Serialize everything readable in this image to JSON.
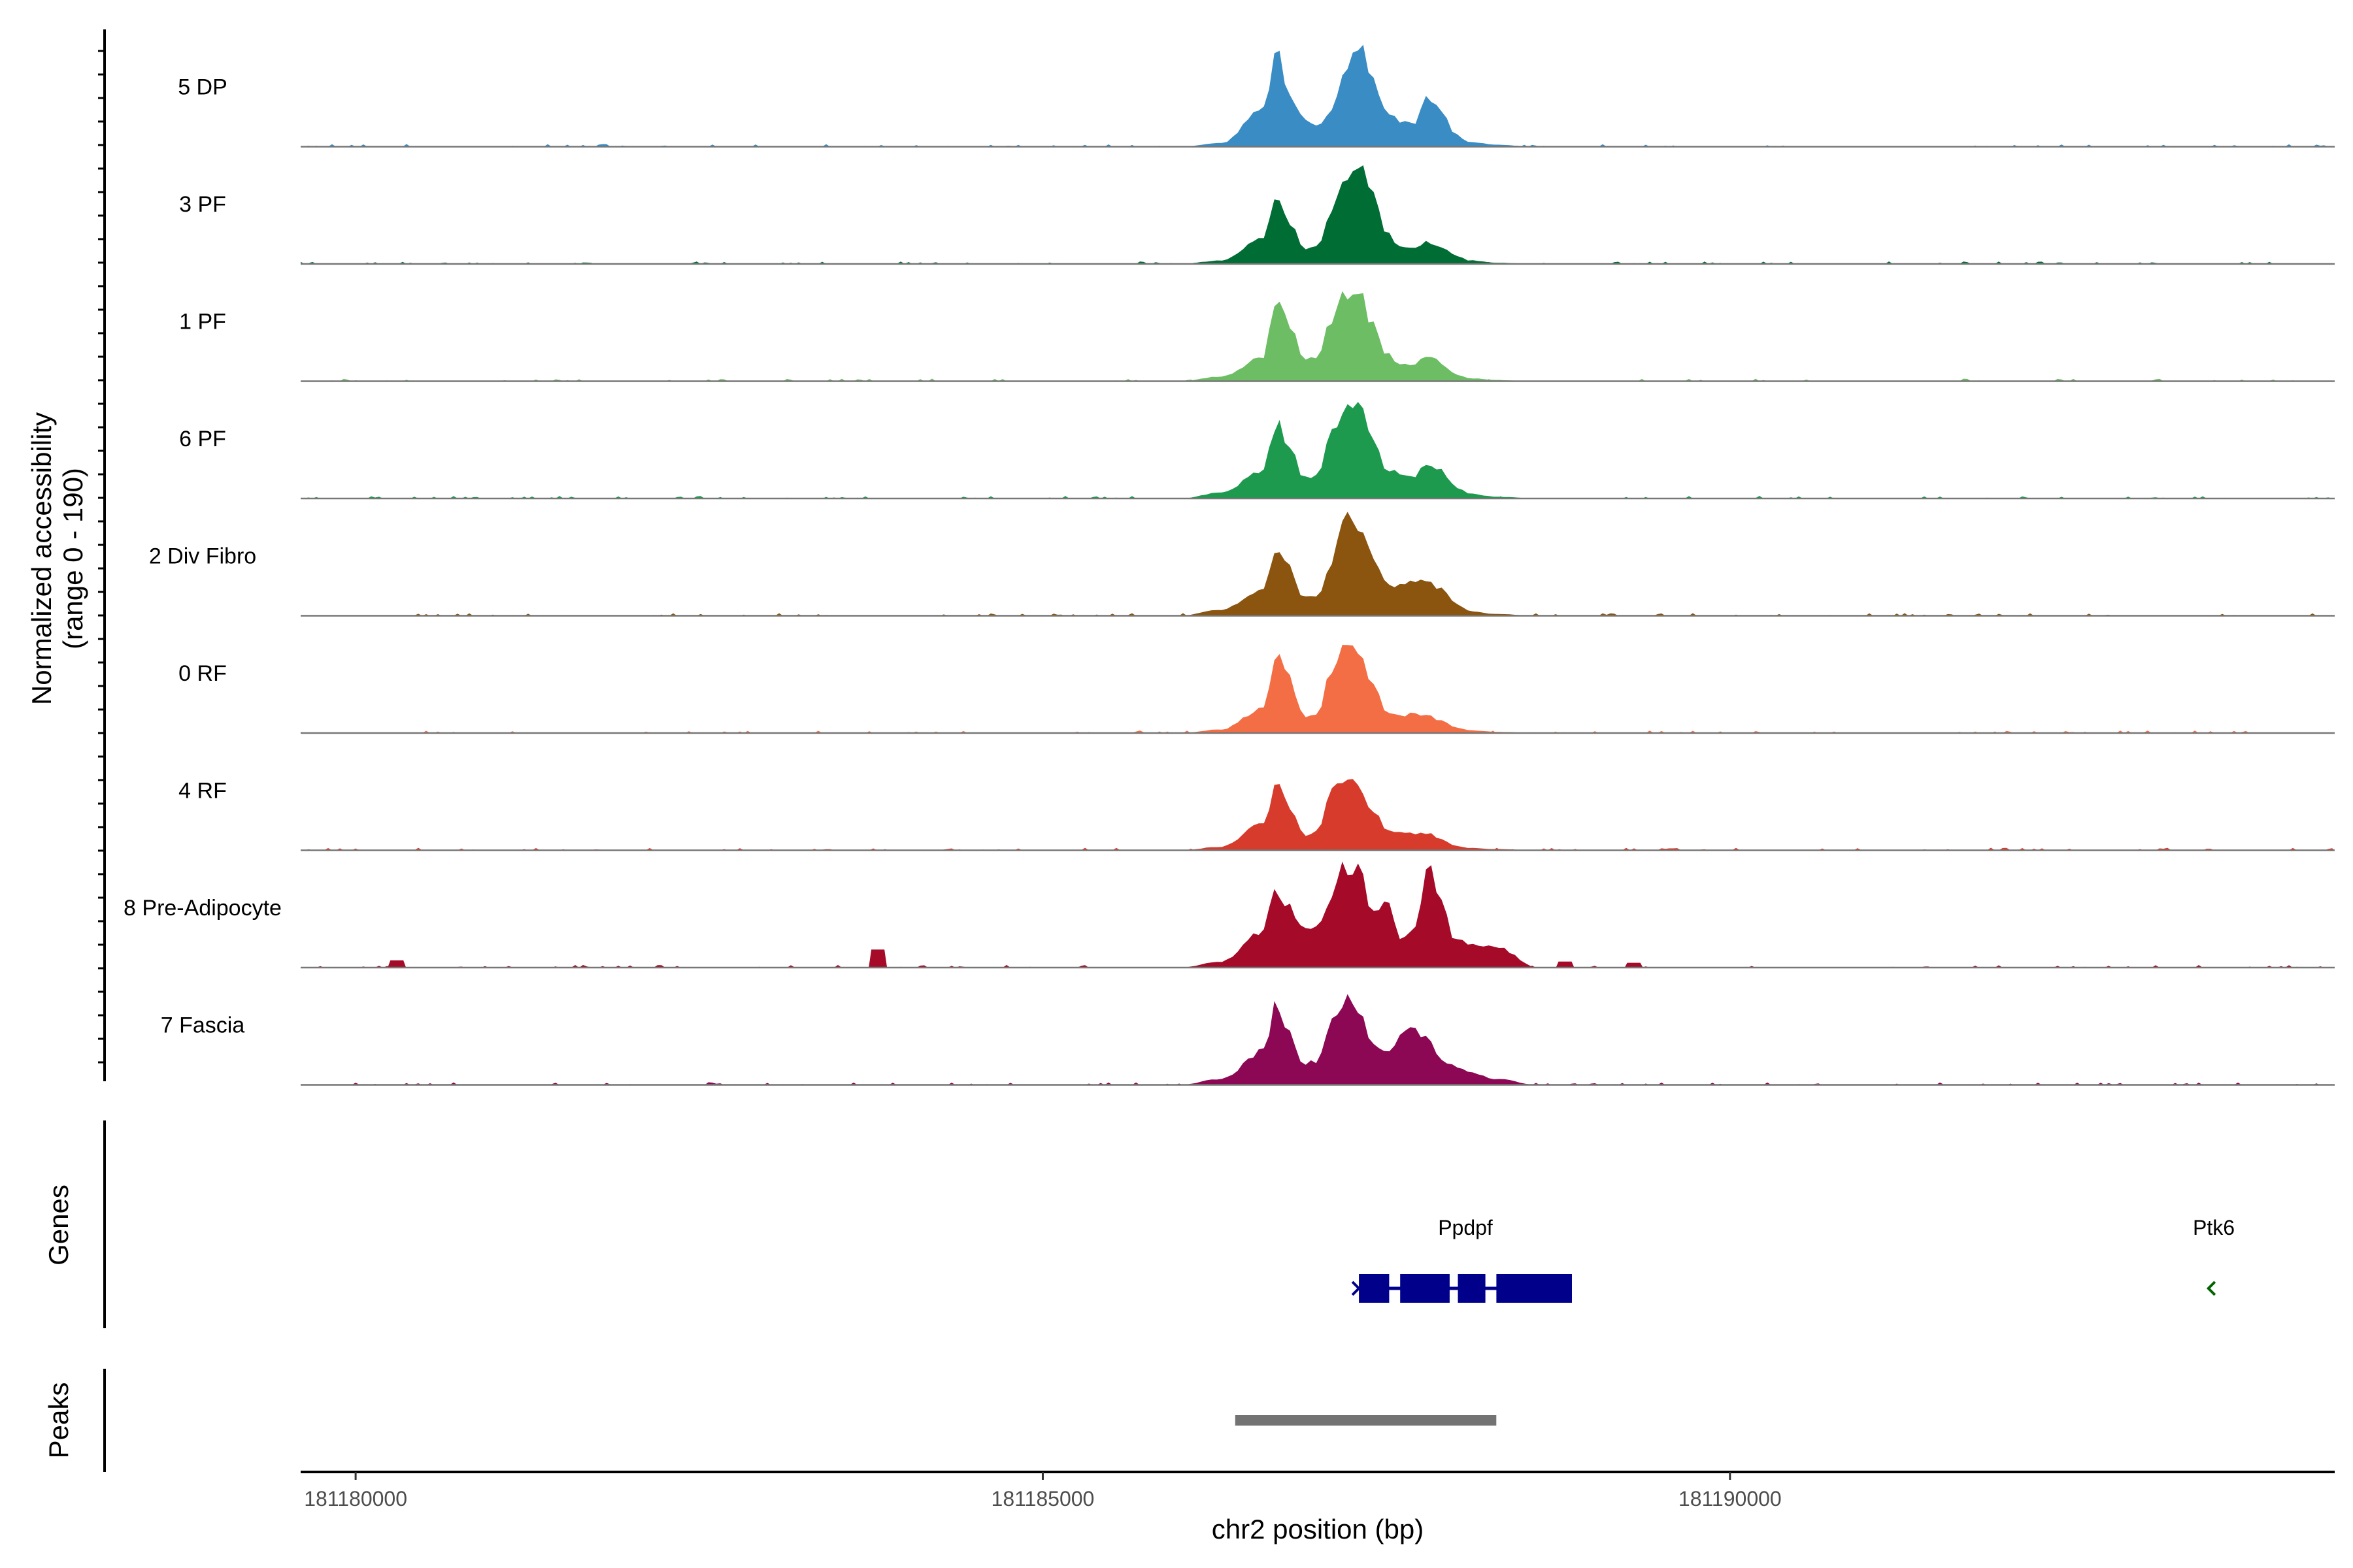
{
  "chart_data": {
    "type": "area",
    "chromosome": "chr2",
    "xlabel": "chr2 position (bp)",
    "ylabel": "Normalized accessibility",
    "ylabel_range": "(range 0 - 190)",
    "ylim": [
      0,
      190
    ],
    "xlim": [
      181179600,
      181194400
    ],
    "x_ticks": [
      {
        "value": 181180000,
        "label": "181180000"
      },
      {
        "value": 181185000,
        "label": "181185000"
      },
      {
        "value": 181190000,
        "label": "181190000"
      }
    ],
    "grid": false,
    "peak_profile": {
      "x": [
        181186000,
        181186300,
        181186600,
        181186700,
        181186800,
        181186900,
        181187000,
        181187100,
        181187200,
        181187300,
        181187400,
        181187500,
        181187600,
        181187700,
        181187800,
        181187900,
        181188000,
        181188100,
        181188300,
        181188600
      ],
      "rel": [
        0,
        0.05,
        0.3,
        0.8,
        0.5,
        0.2,
        0.15,
        0.35,
        0.8,
        0.95,
        0.6,
        0.3,
        0.22,
        0.18,
        0.25,
        0.2,
        0.12,
        0.06,
        0.02,
        0
      ]
    },
    "series": [
      {
        "name": "5 DP",
        "color": "#3a8cc4",
        "values": [
          [
            181186000,
            0
          ],
          [
            181186300,
            6
          ],
          [
            181186600,
            60
          ],
          [
            181186700,
            155
          ],
          [
            181186800,
            85
          ],
          [
            181186900,
            45
          ],
          [
            181187000,
            38
          ],
          [
            181187100,
            60
          ],
          [
            181187200,
            120
          ],
          [
            181187300,
            175
          ],
          [
            181187400,
            110
          ],
          [
            181187500,
            60
          ],
          [
            181187600,
            42
          ],
          [
            181187700,
            40
          ],
          [
            181187800,
            80
          ],
          [
            181187900,
            60
          ],
          [
            181188000,
            22
          ],
          [
            181188100,
            8
          ],
          [
            181188300,
            3
          ],
          [
            181188600,
            0
          ]
        ]
      },
      {
        "name": "3 PF",
        "color": "#006d35",
        "values": [
          [
            181186000,
            0
          ],
          [
            181186300,
            6
          ],
          [
            181186600,
            40
          ],
          [
            181186700,
            120
          ],
          [
            181186800,
            65
          ],
          [
            181186900,
            25
          ],
          [
            181187000,
            30
          ],
          [
            181187100,
            95
          ],
          [
            181187200,
            150
          ],
          [
            181187300,
            165
          ],
          [
            181187400,
            115
          ],
          [
            181187500,
            50
          ],
          [
            181187600,
            30
          ],
          [
            181187700,
            25
          ],
          [
            181187800,
            38
          ],
          [
            181187900,
            28
          ],
          [
            181188000,
            14
          ],
          [
            181188100,
            6
          ],
          [
            181188300,
            2
          ],
          [
            181188600,
            0
          ]
        ]
      },
      {
        "name": "1 PF",
        "color": "#6cbd63",
        "values": [
          [
            181186000,
            0
          ],
          [
            181186300,
            8
          ],
          [
            181186600,
            40
          ],
          [
            181186700,
            130
          ],
          [
            181186800,
            90
          ],
          [
            181186900,
            35
          ],
          [
            181187000,
            40
          ],
          [
            181187100,
            100
          ],
          [
            181187200,
            150
          ],
          [
            181187300,
            145
          ],
          [
            181187400,
            95
          ],
          [
            181187500,
            45
          ],
          [
            181187600,
            30
          ],
          [
            181187700,
            28
          ],
          [
            181187800,
            45
          ],
          [
            181187900,
            30
          ],
          [
            181188000,
            12
          ],
          [
            181188100,
            5
          ],
          [
            181188300,
            2
          ],
          [
            181188600,
            0
          ]
        ]
      },
      {
        "name": "6 PF",
        "color": "#1d9a4e",
        "values": [
          [
            181186000,
            0
          ],
          [
            181186300,
            10
          ],
          [
            181186600,
            45
          ],
          [
            181186700,
            125
          ],
          [
            181186800,
            80
          ],
          [
            181186900,
            35
          ],
          [
            181187000,
            40
          ],
          [
            181187100,
            110
          ],
          [
            181187200,
            160
          ],
          [
            181187300,
            150
          ],
          [
            181187400,
            100
          ],
          [
            181187500,
            50
          ],
          [
            181187600,
            40
          ],
          [
            181187700,
            38
          ],
          [
            181187800,
            60
          ],
          [
            181187900,
            45
          ],
          [
            181188000,
            20
          ],
          [
            181188100,
            8
          ],
          [
            181188300,
            3
          ],
          [
            181188600,
            0
          ]
        ]
      },
      {
        "name": "2 Div Fibro",
        "color": "#8b5510",
        "values": [
          [
            181186000,
            0
          ],
          [
            181186300,
            10
          ],
          [
            181186600,
            45
          ],
          [
            181186700,
            110
          ],
          [
            181186800,
            80
          ],
          [
            181186900,
            30
          ],
          [
            181187000,
            35
          ],
          [
            181187100,
            90
          ],
          [
            181187200,
            160
          ],
          [
            181187300,
            150
          ],
          [
            181187400,
            100
          ],
          [
            181187500,
            55
          ],
          [
            181187600,
            50
          ],
          [
            181187700,
            55
          ],
          [
            181187800,
            60
          ],
          [
            181187900,
            45
          ],
          [
            181188000,
            20
          ],
          [
            181188100,
            8
          ],
          [
            181188300,
            3
          ],
          [
            181188600,
            0
          ]
        ]
      },
      {
        "name": "0 RF",
        "color": "#f36e45",
        "values": [
          [
            181186000,
            0
          ],
          [
            181186300,
            6
          ],
          [
            181186600,
            40
          ],
          [
            181186700,
            130
          ],
          [
            181186800,
            90
          ],
          [
            181186900,
            25
          ],
          [
            181187000,
            30
          ],
          [
            181187100,
            110
          ],
          [
            181187200,
            145
          ],
          [
            181187300,
            130
          ],
          [
            181187400,
            80
          ],
          [
            181187500,
            35
          ],
          [
            181187600,
            30
          ],
          [
            181187700,
            32
          ],
          [
            181187800,
            30
          ],
          [
            181187900,
            20
          ],
          [
            181188000,
            10
          ],
          [
            181188100,
            5
          ],
          [
            181188300,
            2
          ],
          [
            181188600,
            0
          ]
        ]
      },
      {
        "name": "4 RF",
        "color": "#d73b2b",
        "values": [
          [
            181186000,
            0
          ],
          [
            181186300,
            6
          ],
          [
            181186600,
            45
          ],
          [
            181186700,
            110
          ],
          [
            181186800,
            75
          ],
          [
            181186900,
            25
          ],
          [
            181187000,
            30
          ],
          [
            181187100,
            100
          ],
          [
            181187200,
            125
          ],
          [
            181187300,
            110
          ],
          [
            181187400,
            70
          ],
          [
            181187500,
            35
          ],
          [
            181187600,
            28
          ],
          [
            181187700,
            28
          ],
          [
            181187800,
            30
          ],
          [
            181187900,
            18
          ],
          [
            181188000,
            8
          ],
          [
            181188100,
            4
          ],
          [
            181188300,
            2
          ],
          [
            181188600,
            0
          ]
        ]
      },
      {
        "name": "8 Pre-Adipocyte",
        "color": "#a50b28",
        "values": [
          [
            181186000,
            0
          ],
          [
            181186300,
            10
          ],
          [
            181186600,
            60
          ],
          [
            181186700,
            130
          ],
          [
            181186800,
            100
          ],
          [
            181186900,
            60
          ],
          [
            181187000,
            70
          ],
          [
            181187100,
            120
          ],
          [
            181187200,
            170
          ],
          [
            181187300,
            160
          ],
          [
            181187400,
            90
          ],
          [
            181187500,
            110
          ],
          [
            181187600,
            50
          ],
          [
            181187700,
            60
          ],
          [
            181187800,
            175
          ],
          [
            181187900,
            120
          ],
          [
            181188000,
            45
          ],
          [
            181188100,
            40
          ],
          [
            181188300,
            35
          ],
          [
            181188600,
            0
          ]
        ]
      },
      {
        "name": "7 Fascia",
        "color": "#8c0854",
        "values": [
          [
            181186000,
            0
          ],
          [
            181186300,
            10
          ],
          [
            181186600,
            55
          ],
          [
            181186700,
            135
          ],
          [
            181186800,
            85
          ],
          [
            181186900,
            35
          ],
          [
            181187000,
            40
          ],
          [
            181187100,
            110
          ],
          [
            181187200,
            140
          ],
          [
            181187300,
            120
          ],
          [
            181187400,
            70
          ],
          [
            181187500,
            55
          ],
          [
            181187600,
            80
          ],
          [
            181187700,
            100
          ],
          [
            181187800,
            75
          ],
          [
            181187900,
            40
          ],
          [
            181188000,
            30
          ],
          [
            181188100,
            22
          ],
          [
            181188300,
            10
          ],
          [
            181188600,
            0
          ]
        ]
      }
    ],
    "side_blips": [
      {
        "series": "8 Pre-Adipocyte",
        "x": 181180300,
        "value": 12
      },
      {
        "series": "8 Pre-Adipocyte",
        "x": 181183800,
        "value": 30
      },
      {
        "series": "8 Pre-Adipocyte",
        "x": 181188800,
        "value": 10
      },
      {
        "series": "8 Pre-Adipocyte",
        "x": 181189300,
        "value": 8
      }
    ],
    "genes_track_label": "Genes",
    "genes": [
      {
        "name": "Ppdpf",
        "start": 181187300,
        "end": 181188850,
        "strand": "+",
        "color": "#00008b",
        "exons": [
          [
            181187300,
            181187520
          ],
          [
            181187600,
            181187960
          ],
          [
            181188020,
            181188220
          ],
          [
            181188300,
            181188850
          ]
        ]
      },
      {
        "name": "Ptk6",
        "start": 181193500,
        "end": 181193540,
        "strand": "-",
        "color": "#006400",
        "exons": []
      }
    ],
    "peaks_track_label": "Peaks",
    "peaks": [
      {
        "start": 181186400,
        "end": 181188300,
        "color": "#737373"
      }
    ]
  }
}
